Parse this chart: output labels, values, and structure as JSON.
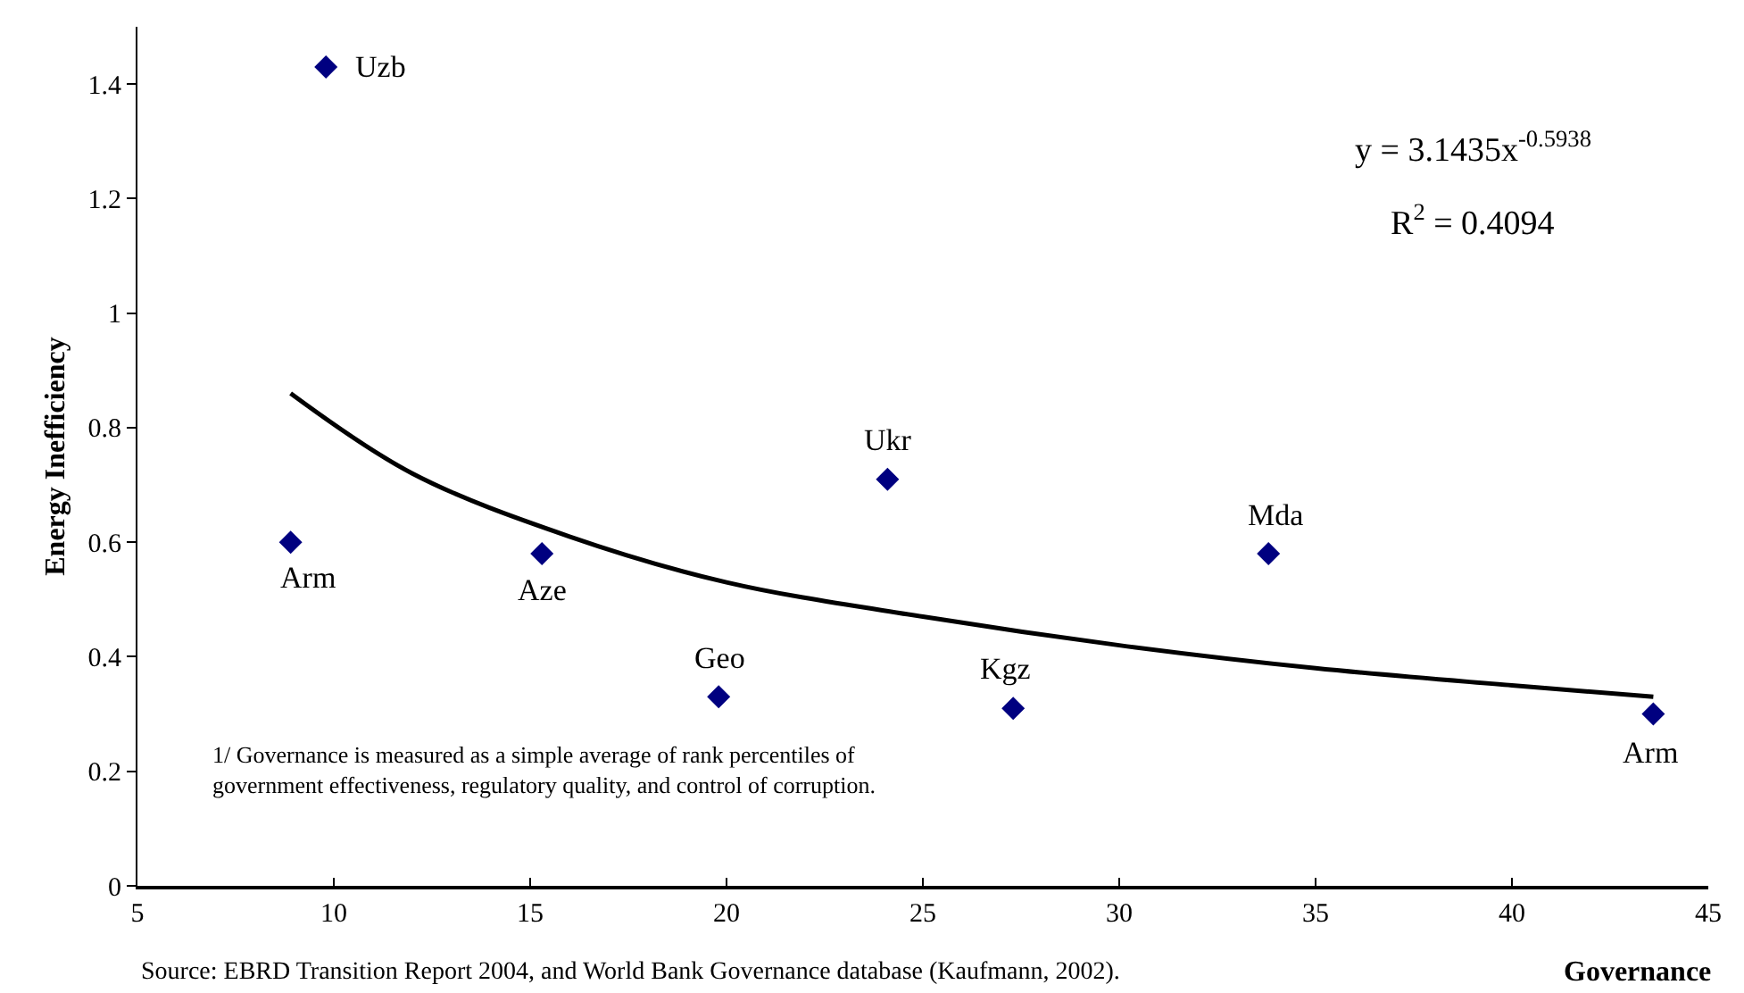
{
  "chart_data": {
    "type": "scatter",
    "xlabel": "Governance",
    "ylabel": "Energy Inefficiency",
    "xlim": [
      5,
      45
    ],
    "xticks": [
      5,
      10,
      15,
      20,
      25,
      30,
      35,
      40,
      45
    ],
    "ylim": [
      0,
      1.5
    ],
    "yticks": [
      0,
      0.2,
      0.4,
      0.6,
      0.8,
      1,
      1.2,
      1.4
    ],
    "marker": "diamond",
    "series": [
      {
        "color": "#000080",
        "x": [
          9.8,
          8.9,
          15.3,
          19.8,
          24.1,
          27.3,
          33.8,
          43.6
        ],
        "values": [
          1.43,
          0.6,
          0.58,
          0.33,
          0.71,
          0.31,
          0.58,
          0.3
        ]
      },
      {
        "type": "line",
        "color": "#000000",
        "marker": "none",
        "line_style": "solid",
        "x": [
          8.9,
          12,
          16,
          20,
          25,
          30,
          35,
          40,
          43.6
        ],
        "values": [
          0.86,
          0.72,
          0.61,
          0.53,
          0.47,
          0.42,
          0.38,
          0.35,
          0.33
        ]
      }
    ],
    "annotations": [
      {
        "text": "Uzb",
        "x": 9.8,
        "y": 1.43
      },
      {
        "text": "Arm",
        "x": 8.9,
        "y": 0.6
      },
      {
        "text": "Aze",
        "x": 15.3,
        "y": 0.58
      },
      {
        "text": "Geo",
        "x": 19.8,
        "y": 0.33
      },
      {
        "text": "Ukr",
        "x": 24.1,
        "y": 0.71
      },
      {
        "text": "Kgz",
        "x": 27.3,
        "y": 0.31
      },
      {
        "text": "Mda",
        "x": 33.8,
        "y": 0.58
      },
      {
        "text": "Arm",
        "x": 43.6,
        "y": 0.3
      },
      "y = 3.1435x$^{-0.5938}$",
      "R$^{2}$ = 0.4094",
      "1/ Governance is measured as a simple average of rank percentiles of\ngovernment effectiveness, regulatory quality, and control of corruption.",
      "Source: EBRD Transition Report 2004, and World Bank Governance database (Kaufmann, 2002)."
    ]
  }
}
